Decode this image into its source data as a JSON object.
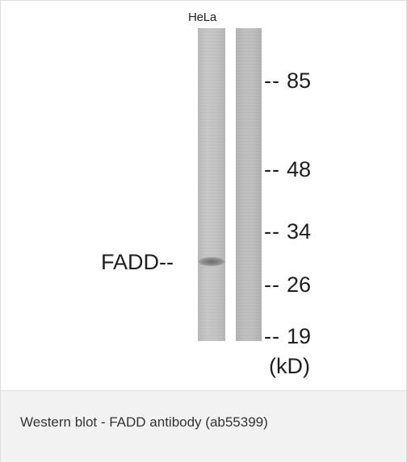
{
  "figure": {
    "lane_label": "HeLa",
    "band_label": "FADD--",
    "markers": [
      {
        "dash": "--",
        "value": "85"
      },
      {
        "dash": "--",
        "value": "48"
      },
      {
        "dash": "--",
        "value": "34"
      },
      {
        "dash": "--",
        "value": "26"
      },
      {
        "dash": "--",
        "value": "19"
      }
    ],
    "unit": "(kD)",
    "colors": {
      "lane_1": "#c4c4c4",
      "lane_2": "#bdbdbd",
      "band": "#6e6e6e",
      "caption_bg": "#f2f2f2"
    }
  },
  "caption": "Western blot - FADD antibody (ab55399)"
}
